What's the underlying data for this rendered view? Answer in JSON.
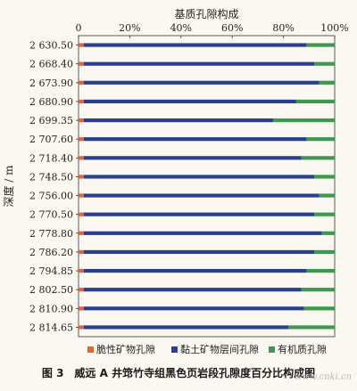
{
  "chart_data": {
    "type": "bar",
    "orientation": "horizontal",
    "stacked": true,
    "title": "基质孔隙构成",
    "xlabel": "",
    "ylabel": "深度 / m",
    "x_ticks": [
      "0",
      "20%",
      "40%",
      "60%",
      "80%",
      "100%"
    ],
    "xlim": [
      0,
      100
    ],
    "categories": [
      "2 630.50",
      "2 668.40",
      "2 673.90",
      "2 680.90",
      "2 699.35",
      "2 707.60",
      "2 718.40",
      "2 748.50",
      "2 756.00",
      "2 770.50",
      "2 778.80",
      "2 786.20",
      "2 794.85",
      "2 802.50",
      "2 810.90",
      "2 814.65"
    ],
    "series": [
      {
        "name": "脆性矿物孔隙",
        "color": "#e0653a",
        "values": [
          2,
          2,
          2,
          2,
          2,
          2,
          2,
          2,
          2,
          2,
          2,
          2,
          2,
          2,
          2,
          2
        ]
      },
      {
        "name": "黏土矿物层间孔隙",
        "color": "#2b3f8f",
        "values": [
          87,
          90,
          92,
          83,
          74,
          87,
          85,
          90,
          92,
          90,
          93,
          90,
          87,
          85,
          86,
          80
        ]
      },
      {
        "name": "有机质孔隙",
        "color": "#3c9a4e",
        "values": [
          11,
          8,
          6,
          15,
          24,
          11,
          13,
          8,
          6,
          8,
          5,
          8,
          11,
          13,
          12,
          18
        ]
      }
    ],
    "grid": false,
    "legend_position": "bottom"
  },
  "figure": {
    "caption": "图 3　威远 A 井筇竹寺组黑色页岩段孔隙度百分比构成图",
    "watermark": "www.cnki.cn"
  }
}
